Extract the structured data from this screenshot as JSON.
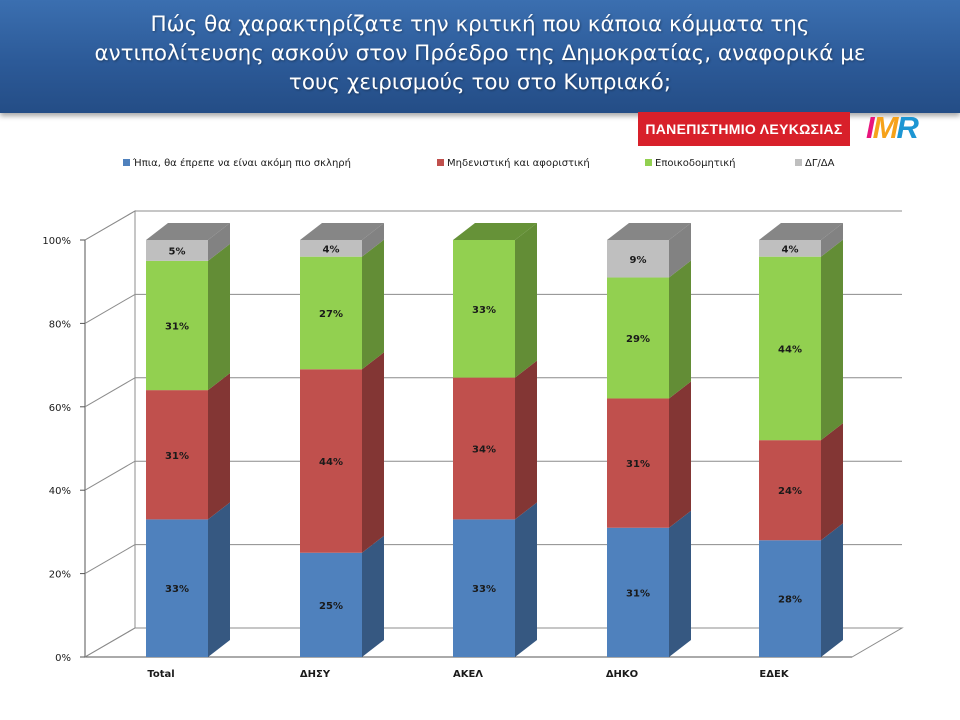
{
  "header": {
    "title_lines": [
      "Πώς θα χαρακτηρίζατε την κριτική που κάποια κόμματα της",
      "αντιπολίτευσης ασκούν στον Πρόεδρο της Δημοκρατίας, αναφορικά με",
      "τους χειρισμούς του στο Κυπριακό;"
    ]
  },
  "logos": {
    "university": "ΠΑΝΕΠΙΣΤΗΜΙΟ ΛΕΥΚΩΣΙΑΣ",
    "imr": "IMR"
  },
  "colors": {
    "banner": "#2c5a98",
    "series": [
      "#4f81bd",
      "#c0504d",
      "#92d050",
      "#bfbfbf"
    ]
  },
  "chart_data": {
    "type": "bar",
    "stacked": true,
    "three_d": true,
    "categories": [
      "Total",
      "ΔΗΣΥ",
      "ΑΚΕΛ",
      "ΔΗΚΟ",
      "ΕΔΕΚ"
    ],
    "series": [
      {
        "name": "Ήπια, θα έπρεπε να είναι ακόμη πιο σκληρή",
        "values": [
          33,
          25,
          33,
          31,
          28
        ]
      },
      {
        "name": "Μηδενιστική και αφοριστική",
        "values": [
          31,
          44,
          34,
          31,
          24
        ]
      },
      {
        "name": "Εποικοδομητική",
        "values": [
          31,
          27,
          33,
          29,
          44
        ]
      },
      {
        "name": "ΔΓ/ΔΑ",
        "values": [
          5,
          4,
          null,
          9,
          4
        ]
      }
    ],
    "y_ticks": [
      "0%",
      "20%",
      "40%",
      "60%",
      "80%",
      "100%"
    ],
    "ylim": [
      0,
      100
    ],
    "grid": true,
    "legend": "top"
  }
}
